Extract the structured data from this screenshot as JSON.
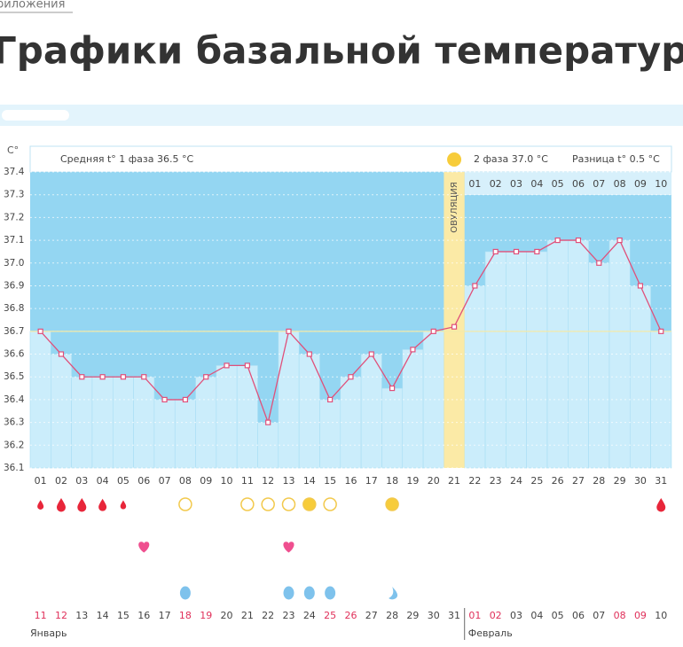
{
  "page": {
    "breadcrumb": "риложения",
    "title": "Графики базальной температуры"
  },
  "chart_data": {
    "type": "line",
    "y_unit": "C°",
    "phase1_label": "Средняя t° 1 фаза 36.5 °C",
    "phase2_label": "2 фаза 37.0 °C",
    "difference_label": "Разница t° 0.5 °C",
    "ovulation_label": "ОВУЛЯЦИЯ",
    "ovulation_day": 21,
    "categories": [
      "01",
      "02",
      "03",
      "04",
      "05",
      "06",
      "07",
      "08",
      "09",
      "10",
      "11",
      "12",
      "13",
      "14",
      "15",
      "16",
      "17",
      "18",
      "19",
      "20",
      "21",
      "22",
      "23",
      "24",
      "25",
      "26",
      "27",
      "28",
      "29",
      "30",
      "31"
    ],
    "values": [
      36.7,
      36.6,
      36.5,
      36.5,
      36.5,
      36.5,
      36.4,
      36.4,
      36.5,
      36.55,
      36.55,
      36.3,
      36.7,
      36.6,
      36.4,
      36.5,
      36.6,
      36.45,
      36.62,
      36.7,
      36.72,
      36.9,
      37.05,
      37.05,
      37.05,
      37.1,
      37.1,
      37.0,
      37.1,
      36.9,
      36.7
    ],
    "luteal_days": [
      "01",
      "02",
      "03",
      "04",
      "05",
      "06",
      "07",
      "08",
      "09",
      "10"
    ],
    "dates": [
      "11",
      "12",
      "13",
      "14",
      "15",
      "16",
      "17",
      "18",
      "19",
      "20",
      "21",
      "22",
      "23",
      "24",
      "25",
      "26",
      "27",
      "28",
      "29",
      "30",
      "31",
      "01",
      "02",
      "03",
      "04",
      "05",
      "06",
      "07",
      "08",
      "09",
      "10"
    ],
    "months": [
      "Январь",
      "Февраль"
    ],
    "color": "#e0507a",
    "cover_line": 36.7,
    "ylim": [
      36.1,
      37.4
    ],
    "yticks": [
      36.1,
      36.2,
      36.3,
      36.4,
      36.5,
      36.6,
      36.7,
      36.8,
      36.9,
      {
        "value": 37,
        "label": "37.0"
      },
      37.1,
      37.2,
      37.3,
      37.4
    ]
  }
}
